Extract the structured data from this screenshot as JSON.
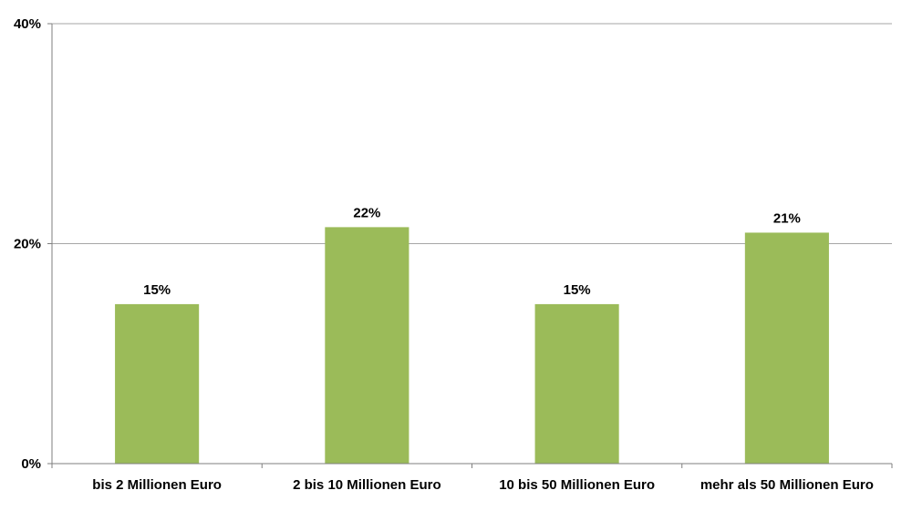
{
  "chart_data": {
    "type": "bar",
    "categories": [
      "bis 2 Millionen Euro",
      "2 bis 10 Millionen Euro",
      "10 bis 50 Millionen Euro",
      "mehr als 50 Millionen Euro"
    ],
    "values": [
      14.5,
      21.5,
      14.5,
      21.0
    ],
    "data_labels": [
      "15%",
      "22%",
      "15%",
      "21%"
    ],
    "ylim": [
      0,
      40
    ],
    "yticks": [
      0,
      20,
      40
    ],
    "ytick_labels": [
      "0%",
      "20%",
      "40%"
    ],
    "grid": true,
    "legend": "none",
    "bar_color": "#9bbb59",
    "grid_color": "#a6a6a6",
    "axis_color": "#7f7f7f"
  }
}
